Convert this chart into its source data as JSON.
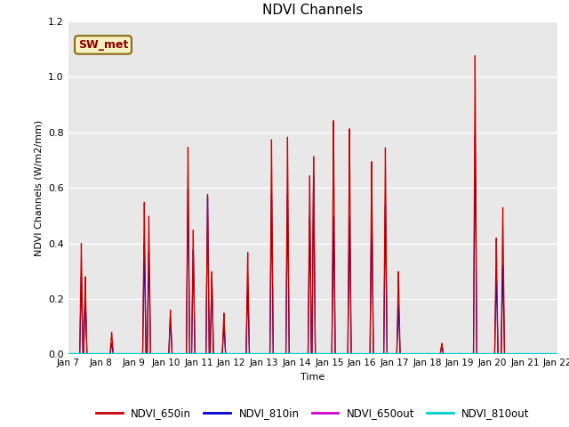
{
  "title": "NDVI Channels",
  "ylabel": "NDVI Channels (W/m2/mm)",
  "xlabel": "Time",
  "annotation": "SW_met",
  "ylim": [
    0,
    1.2
  ],
  "plot_bg_color": "#e8e8e8",
  "fig_bg_color": "#ffffff",
  "legend_entries": [
    "NDVI_650in",
    "NDVI_810in",
    "NDVI_650out",
    "NDVI_810out"
  ],
  "legend_colors": [
    "#cc0000",
    "#0000cc",
    "#cc00cc",
    "#00cccc"
  ],
  "x_tick_labels": [
    "Jan 7",
    "Jan 8",
    "Jan 9",
    "Jan 10",
    "Jan 11",
    "Jan 12",
    "Jan 13",
    "Jan 14",
    "Jan 15",
    "Jan 16",
    "Jan 17",
    "Jan 18",
    "Jan 19",
    "Jan 20",
    "Jan 21",
    "Jan 22"
  ],
  "spikes_650in": [
    [
      7.35,
      0.0,
      7.4,
      0.4,
      7.45,
      0.0
    ],
    [
      7.47,
      0.0,
      7.52,
      0.28,
      7.57,
      0.0
    ],
    [
      8.28,
      0.0,
      8.33,
      0.08,
      8.38,
      0.0
    ],
    [
      9.28,
      0.0,
      9.33,
      0.55,
      9.38,
      0.0
    ],
    [
      9.42,
      0.0,
      9.47,
      0.5,
      9.52,
      0.0
    ],
    [
      10.08,
      0.0,
      10.13,
      0.16,
      10.18,
      0.0
    ],
    [
      10.62,
      0.0,
      10.67,
      0.75,
      10.72,
      0.0
    ],
    [
      10.78,
      0.0,
      10.83,
      0.45,
      10.88,
      0.0
    ],
    [
      11.22,
      0.0,
      11.27,
      0.58,
      11.32,
      0.0
    ],
    [
      11.35,
      0.0,
      11.4,
      0.3,
      11.45,
      0.0
    ],
    [
      11.72,
      0.0,
      11.77,
      0.15,
      11.82,
      0.0
    ],
    [
      12.45,
      0.0,
      12.5,
      0.37,
      12.55,
      0.0
    ],
    [
      13.18,
      0.0,
      13.23,
      0.78,
      13.28,
      0.0
    ],
    [
      13.67,
      0.0,
      13.72,
      0.79,
      13.77,
      0.0
    ],
    [
      14.35,
      0.0,
      14.4,
      0.65,
      14.45,
      0.0
    ],
    [
      14.47,
      0.0,
      14.52,
      0.72,
      14.57,
      0.0
    ],
    [
      15.08,
      0.0,
      15.13,
      0.85,
      15.18,
      0.0
    ],
    [
      15.57,
      0.0,
      15.62,
      0.82,
      15.67,
      0.0
    ],
    [
      16.25,
      0.0,
      16.3,
      0.7,
      16.35,
      0.0
    ],
    [
      16.67,
      0.0,
      16.72,
      0.75,
      16.77,
      0.0
    ],
    [
      17.07,
      0.0,
      17.12,
      0.3,
      17.17,
      0.0
    ],
    [
      18.4,
      0.0,
      18.45,
      0.04,
      18.5,
      0.0
    ],
    [
      19.42,
      0.0,
      19.47,
      1.08,
      19.52,
      0.0
    ],
    [
      20.07,
      0.0,
      20.12,
      0.42,
      20.17,
      0.0
    ],
    [
      20.27,
      0.0,
      20.32,
      0.53,
      20.37,
      0.0
    ]
  ],
  "spikes_810in": [
    [
      7.35,
      0.0,
      7.4,
      0.28,
      7.45,
      0.0
    ],
    [
      7.47,
      0.0,
      7.52,
      0.22,
      7.57,
      0.0
    ],
    [
      8.28,
      0.0,
      8.33,
      0.04,
      8.38,
      0.0
    ],
    [
      9.28,
      0.0,
      9.33,
      0.4,
      9.38,
      0.0
    ],
    [
      9.42,
      0.0,
      9.47,
      0.37,
      9.52,
      0.0
    ],
    [
      10.08,
      0.0,
      10.13,
      0.13,
      10.18,
      0.0
    ],
    [
      10.62,
      0.0,
      10.67,
      0.6,
      10.72,
      0.0
    ],
    [
      10.78,
      0.0,
      10.83,
      0.38,
      10.88,
      0.0
    ],
    [
      11.22,
      0.0,
      11.27,
      0.57,
      11.32,
      0.0
    ],
    [
      11.35,
      0.0,
      11.4,
      0.28,
      11.45,
      0.0
    ],
    [
      11.72,
      0.0,
      11.77,
      0.11,
      11.82,
      0.0
    ],
    [
      12.45,
      0.0,
      12.5,
      0.25,
      12.55,
      0.0
    ],
    [
      13.18,
      0.0,
      13.23,
      0.58,
      13.28,
      0.0
    ],
    [
      13.67,
      0.0,
      13.72,
      0.58,
      13.77,
      0.0
    ],
    [
      14.35,
      0.0,
      14.4,
      0.5,
      14.45,
      0.0
    ],
    [
      14.47,
      0.0,
      14.52,
      0.65,
      14.57,
      0.0
    ],
    [
      15.08,
      0.0,
      15.13,
      0.5,
      15.18,
      0.0
    ],
    [
      15.57,
      0.0,
      15.62,
      0.5,
      15.67,
      0.0
    ],
    [
      16.25,
      0.0,
      16.3,
      0.55,
      16.35,
      0.0
    ],
    [
      16.67,
      0.0,
      16.72,
      0.54,
      16.77,
      0.0
    ],
    [
      17.07,
      0.0,
      17.12,
      0.18,
      17.17,
      0.0
    ],
    [
      18.4,
      0.0,
      18.45,
      0.03,
      18.5,
      0.0
    ],
    [
      19.42,
      0.0,
      19.47,
      0.79,
      19.52,
      0.0
    ],
    [
      20.07,
      0.0,
      20.12,
      0.3,
      20.17,
      0.0
    ],
    [
      20.27,
      0.0,
      20.32,
      0.32,
      20.37,
      0.0
    ]
  ]
}
